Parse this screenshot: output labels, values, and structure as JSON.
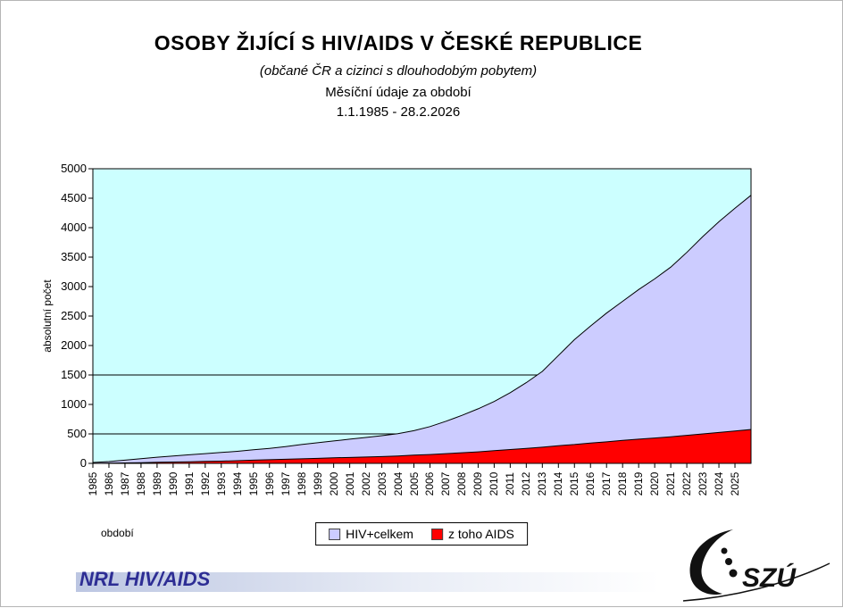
{
  "chart_data": {
    "type": "area",
    "title": "OSOBY ŽIJÍCÍ S HIV/AIDS V ČESKÉ REPUBLICE",
    "subtitle1": "(občané ČR a cizinci s dlouhodobým pobytem)",
    "subtitle2": "Měsíční údaje za období",
    "subtitle3": "1.1.1985 - 28.2.2026",
    "xlabel": "období",
    "ylabel": "absolutní počet",
    "xlim": [
      1985,
      2026
    ],
    "ylim": [
      0,
      5000
    ],
    "yticks": [
      0,
      500,
      1000,
      1500,
      2000,
      2500,
      3000,
      3500,
      4000,
      4500,
      5000
    ],
    "gridlines_y": [
      500,
      1500
    ],
    "plot_bg": "#ccffff",
    "legend_position": "bottom-center",
    "x_ticklabels": [
      "1985",
      "1986",
      "1987",
      "1988",
      "1989",
      "1990",
      "1991",
      "1992",
      "1993",
      "1994",
      "1995",
      "1996",
      "1997",
      "1998",
      "1999",
      "2000",
      "2001",
      "2002",
      "2003",
      "2004",
      "2005",
      "2006",
      "2007",
      "2008",
      "2009",
      "2010",
      "2011",
      "2012",
      "2013",
      "2014",
      "2015",
      "2016",
      "2017",
      "2018",
      "2019",
      "2020",
      "2021",
      "2022",
      "2023",
      "2024",
      "2025"
    ],
    "x": [
      1985,
      1986,
      1987,
      1988,
      1989,
      1990,
      1991,
      1992,
      1993,
      1994,
      1995,
      1996,
      1997,
      1998,
      1999,
      2000,
      2001,
      2002,
      2003,
      2004,
      2005,
      2006,
      2007,
      2008,
      2009,
      2010,
      2011,
      2012,
      2013,
      2014,
      2015,
      2016,
      2017,
      2018,
      2019,
      2020,
      2021,
      2022,
      2023,
      2024,
      2025,
      2026
    ],
    "series": [
      {
        "name": "HIV+celkem",
        "color": "#ccccff",
        "values": [
          15,
          30,
          55,
          80,
          105,
          125,
          145,
          165,
          185,
          205,
          230,
          255,
          285,
          320,
          350,
          380,
          410,
          440,
          470,
          505,
          555,
          625,
          715,
          815,
          925,
          1050,
          1200,
          1370,
          1560,
          1830,
          2100,
          2330,
          2550,
          2750,
          2950,
          3130,
          3330,
          3580,
          3850,
          4100,
          4330,
          4550
        ]
      },
      {
        "name": "z toho AIDS",
        "color": "#ff0000",
        "values": [
          0,
          5,
          8,
          12,
          18,
          22,
          28,
          33,
          38,
          45,
          55,
          62,
          70,
          78,
          85,
          95,
          100,
          108,
          115,
          125,
          140,
          150,
          165,
          180,
          195,
          215,
          235,
          255,
          275,
          300,
          320,
          345,
          365,
          390,
          410,
          430,
          450,
          475,
          500,
          525,
          550,
          575
        ]
      }
    ]
  },
  "footer": {
    "brand": "NRL HIV/AIDS",
    "logo_text": "SZÚ"
  }
}
